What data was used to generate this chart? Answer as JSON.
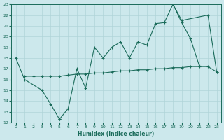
{
  "xlabel": "Humidex (Indice chaleur)",
  "bg_color": "#cce8ec",
  "grid_color": "#b0d4d8",
  "line_color": "#1a6b5a",
  "xlim": [
    -0.5,
    23.5
  ],
  "ylim": [
    12,
    23
  ],
  "xticks": [
    0,
    1,
    2,
    3,
    4,
    5,
    6,
    7,
    8,
    9,
    10,
    11,
    12,
    13,
    14,
    15,
    16,
    17,
    18,
    19,
    20,
    21,
    22,
    23
  ],
  "yticks": [
    12,
    13,
    14,
    15,
    16,
    17,
    18,
    19,
    20,
    21,
    22,
    23
  ],
  "series1": {
    "x": [
      0,
      1,
      3,
      4,
      5,
      5,
      6,
      7,
      8,
      9,
      10,
      11,
      12,
      13,
      14,
      15,
      16,
      17,
      18,
      19,
      20,
      21
    ],
    "y": [
      18,
      16,
      15,
      13.7,
      12.3,
      12.3,
      13.3,
      17,
      15.2,
      19.0,
      18.0,
      19.0,
      19.5,
      18.0,
      19.5,
      19.2,
      21.2,
      21.3,
      23.0,
      21.3,
      19.8,
      17.3
    ]
  },
  "series2": {
    "x": [
      18,
      19,
      22,
      23
    ],
    "y": [
      23.0,
      21.5,
      22.0,
      16.7
    ]
  },
  "series3": {
    "x": [
      1,
      2,
      3,
      4,
      5,
      6,
      7,
      8,
      9,
      10,
      11,
      12,
      13,
      14,
      15,
      16,
      17,
      18,
      19,
      20,
      21,
      22,
      23
    ],
    "y": [
      16.3,
      16.3,
      16.3,
      16.3,
      16.3,
      16.4,
      16.5,
      16.5,
      16.6,
      16.6,
      16.7,
      16.8,
      16.8,
      16.9,
      16.9,
      17.0,
      17.0,
      17.1,
      17.1,
      17.2,
      17.2,
      17.2,
      16.7
    ]
  }
}
